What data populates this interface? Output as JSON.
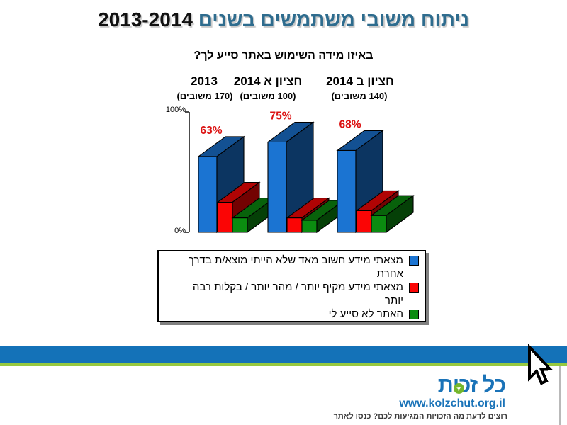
{
  "title": {
    "text_he": "ניתוח משובי משתמשים בשנים",
    "years": "2013-2014"
  },
  "subtitle": "באיזו מידה השימוש באתר סייע לך?",
  "chart_data": {
    "type": "bar",
    "style": "3d-bars",
    "categories": [
      "2013",
      "חציון א 2014",
      "חציון ב 2014"
    ],
    "group_sublabels": [
      "(170 משובים)",
      "(100 משובים)",
      "(140 משובים)"
    ],
    "series": [
      {
        "name": "מצאתי מידע חשוב מאד שלא הייתי מוצא/ת בדרך אחרת",
        "color": "#1b74d2",
        "values": [
          63,
          75,
          68
        ],
        "labels": [
          "63%",
          "75%",
          "68%"
        ]
      },
      {
        "name": "מצאתי מידע מקיף יותר / מהר יותר / בקלות רבה יותר",
        "color": "#fb0505",
        "values": [
          25,
          12,
          18
        ],
        "labels": []
      },
      {
        "name": "האתר לא סייע לי",
        "color": "#0b8c10",
        "values": [
          12,
          10,
          14
        ],
        "labels": []
      }
    ],
    "ylim": [
      0,
      100
    ],
    "y_axis": {
      "top": "100%",
      "bottom": "0%"
    },
    "value_label_color": "#dc1414",
    "legend_position": "bottom"
  },
  "footer": {
    "site_name": "כל זכות",
    "url": "www.kolzchut.org.il",
    "tagline": "רוצים לדעת מה הזכויות המגיעות לכם? כנסו לאתר",
    "band_blue": "#1472b8",
    "band_green": "#97c93f"
  }
}
